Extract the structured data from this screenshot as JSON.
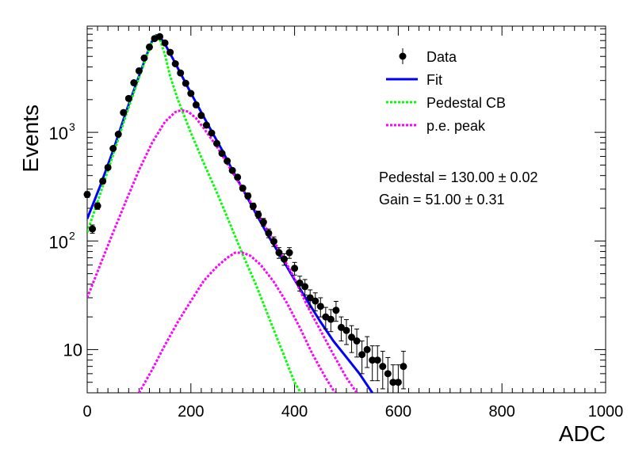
{
  "chart_data": {
    "type": "scatter",
    "title": "",
    "xlabel": "ADC",
    "ylabel": "Events",
    "xlim": [
      0,
      1000
    ],
    "ylim": [
      4.0,
      9500
    ],
    "yscale": "log",
    "grid": false,
    "legend_position": "top-right",
    "x_ticks": [
      {
        "value": 0,
        "label": "0"
      },
      {
        "value": 200,
        "label": "200"
      },
      {
        "value": 400,
        "label": "400"
      },
      {
        "value": 600,
        "label": "600"
      },
      {
        "value": 800,
        "label": "800"
      },
      {
        "value": 1000,
        "label": "1000"
      }
    ],
    "y_ticks": [
      {
        "value": 10,
        "base": "10",
        "exp": ""
      },
      {
        "value": 100,
        "base": "10",
        "exp": "2"
      },
      {
        "value": 1000,
        "base": "10",
        "exp": "3"
      }
    ],
    "annotations": [
      {
        "text": "Pedestal = 130.00 ± 0.02"
      },
      {
        "text": "Gain = 51.00 ± 0.31"
      }
    ],
    "series": [
      {
        "name": "Data",
        "kind": "points",
        "color": "#000000",
        "points": [
          [
            0,
            268
          ],
          [
            10,
            129
          ],
          [
            20,
            210
          ],
          [
            30,
            355
          ],
          [
            40,
            475
          ],
          [
            50,
            710
          ],
          [
            60,
            960
          ],
          [
            70,
            1520
          ],
          [
            80,
            2050
          ],
          [
            90,
            2860
          ],
          [
            100,
            3680
          ],
          [
            110,
            4830
          ],
          [
            120,
            6100
          ],
          [
            130,
            7300
          ],
          [
            140,
            7600
          ],
          [
            150,
            6650
          ],
          [
            160,
            5450
          ],
          [
            170,
            4280
          ],
          [
            180,
            3520
          ],
          [
            190,
            2830
          ],
          [
            200,
            2280
          ],
          [
            210,
            1790
          ],
          [
            220,
            1430
          ],
          [
            230,
            1165
          ],
          [
            240,
            985
          ],
          [
            250,
            790
          ],
          [
            260,
            640
          ],
          [
            270,
            545
          ],
          [
            280,
            446
          ],
          [
            290,
            386
          ],
          [
            300,
            306
          ],
          [
            310,
            260
          ],
          [
            320,
            209
          ],
          [
            330,
            175
          ],
          [
            340,
            149
          ],
          [
            350,
            118
          ],
          [
            360,
            99
          ],
          [
            370,
            78
          ],
          [
            380,
            68
          ],
          [
            390,
            78
          ],
          [
            400,
            56
          ],
          [
            410,
            41
          ],
          [
            420,
            38
          ],
          [
            430,
            30
          ],
          [
            440,
            28
          ],
          [
            450,
            25
          ],
          [
            460,
            20
          ],
          [
            470,
            19
          ],
          [
            480,
            23
          ],
          [
            490,
            16
          ],
          [
            500,
            15
          ],
          [
            510,
            13
          ],
          [
            520,
            12
          ],
          [
            530,
            9
          ],
          [
            540,
            10
          ],
          [
            550,
            8
          ],
          [
            560,
            8
          ],
          [
            570,
            7
          ],
          [
            580,
            6
          ],
          [
            590,
            5
          ],
          [
            600,
            5
          ],
          [
            610,
            7
          ]
        ]
      },
      {
        "name": "Fit",
        "kind": "line",
        "color": "#0000ff",
        "dash": "solid",
        "points": [
          [
            0,
            160
          ],
          [
            25,
            320
          ],
          [
            50,
            680
          ],
          [
            75,
            1550
          ],
          [
            100,
            3300
          ],
          [
            115,
            5200
          ],
          [
            125,
            6900
          ],
          [
            133,
            7800
          ],
          [
            140,
            7600
          ],
          [
            150,
            6500
          ],
          [
            165,
            4800
          ],
          [
            180,
            3500
          ],
          [
            200,
            2300
          ],
          [
            220,
            1530
          ],
          [
            240,
            1020
          ],
          [
            260,
            690
          ],
          [
            280,
            450
          ],
          [
            300,
            300
          ],
          [
            325,
            180
          ],
          [
            350,
            110
          ],
          [
            375,
            70
          ],
          [
            400,
            44
          ],
          [
            425,
            28
          ],
          [
            450,
            18
          ],
          [
            475,
            12
          ],
          [
            500,
            8.5
          ],
          [
            525,
            6
          ],
          [
            550,
            4.0
          ]
        ]
      },
      {
        "name": "Pedestal CB",
        "kind": "line",
        "color": "#00ff00",
        "dash": "dotted",
        "points": [
          [
            0,
            120
          ],
          [
            25,
            270
          ],
          [
            50,
            620
          ],
          [
            75,
            1450
          ],
          [
            100,
            3200
          ],
          [
            115,
            5100
          ],
          [
            125,
            6800
          ],
          [
            132,
            7700
          ],
          [
            140,
            7200
          ],
          [
            150,
            5200
          ],
          [
            160,
            3300
          ],
          [
            175,
            2000
          ],
          [
            200,
            990
          ],
          [
            225,
            520
          ],
          [
            250,
            280
          ],
          [
            275,
            145
          ],
          [
            300,
            75
          ],
          [
            325,
            40
          ],
          [
            350,
            20
          ],
          [
            375,
            10
          ],
          [
            400,
            5
          ],
          [
            412,
            4.0
          ]
        ]
      },
      {
        "name": "p.e. peak",
        "kind": "line",
        "color": "#ff00ff",
        "dash": "dotted",
        "points": [
          [
            0,
            30
          ],
          [
            25,
            60
          ],
          [
            50,
            120
          ],
          [
            75,
            235
          ],
          [
            100,
            450
          ],
          [
            125,
            800
          ],
          [
            150,
            1250
          ],
          [
            170,
            1540
          ],
          [
            182,
            1600
          ],
          [
            195,
            1550
          ],
          [
            210,
            1350
          ],
          [
            225,
            1090
          ],
          [
            250,
            740
          ],
          [
            275,
            470
          ],
          [
            300,
            300
          ],
          [
            325,
            190
          ],
          [
            350,
            120
          ],
          [
            375,
            75
          ],
          [
            400,
            45
          ],
          [
            425,
            25
          ],
          [
            450,
            15
          ],
          [
            475,
            9
          ],
          [
            500,
            5.5
          ],
          [
            520,
            4.0
          ]
        ]
      },
      {
        "name": "",
        "kind": "line",
        "color": "#ff00ff",
        "dash": "dotted",
        "points": [
          [
            100,
            4.0
          ],
          [
            125,
            6.5
          ],
          [
            150,
            11
          ],
          [
            175,
            18
          ],
          [
            200,
            28
          ],
          [
            225,
            43
          ],
          [
            250,
            58
          ],
          [
            270,
            70
          ],
          [
            285,
            78
          ],
          [
            300,
            78
          ],
          [
            315,
            73
          ],
          [
            335,
            60
          ],
          [
            360,
            42
          ],
          [
            385,
            27
          ],
          [
            410,
            16
          ],
          [
            435,
            9
          ],
          [
            460,
            5.5
          ],
          [
            478,
            4.0
          ]
        ]
      }
    ]
  }
}
